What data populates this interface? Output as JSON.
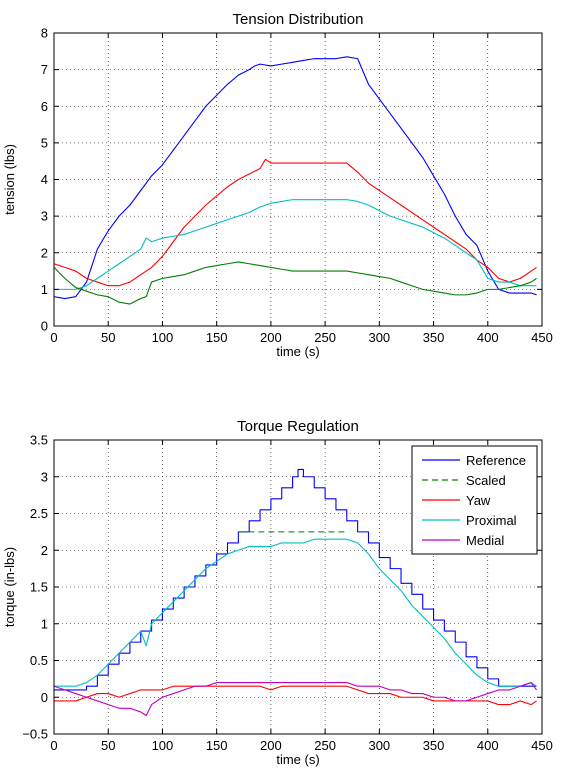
{
  "chart_data": [
    {
      "type": "line",
      "title": "Tension Distribution",
      "xlabel": "time (s)",
      "ylabel": "tension (lbs)",
      "xlim": [
        0,
        450
      ],
      "ylim": [
        0,
        8
      ],
      "xticks": [
        0,
        50,
        100,
        150,
        200,
        250,
        300,
        350,
        400,
        450
      ],
      "yticks": [
        0,
        1,
        2,
        3,
        4,
        5,
        6,
        7,
        8
      ],
      "grid": true,
      "series": [
        {
          "color": "#0000ff",
          "x": [
            0,
            10,
            20,
            30,
            40,
            50,
            60,
            70,
            80,
            90,
            100,
            110,
            120,
            130,
            140,
            150,
            160,
            170,
            180,
            185,
            190,
            200,
            210,
            220,
            230,
            240,
            250,
            260,
            270,
            280,
            290,
            300,
            310,
            320,
            330,
            340,
            350,
            360,
            370,
            380,
            390,
            400,
            410,
            420,
            430,
            440,
            445
          ],
          "y": [
            0.8,
            0.75,
            0.8,
            1.2,
            2.1,
            2.6,
            3.0,
            3.3,
            3.7,
            4.1,
            4.4,
            4.8,
            5.2,
            5.6,
            6.0,
            6.3,
            6.6,
            6.85,
            7.0,
            7.1,
            7.15,
            7.1,
            7.15,
            7.2,
            7.25,
            7.3,
            7.3,
            7.3,
            7.35,
            7.3,
            6.6,
            6.2,
            5.8,
            5.4,
            5.0,
            4.6,
            4.1,
            3.6,
            3.0,
            2.5,
            2.2,
            1.5,
            1.0,
            0.9,
            0.9,
            0.9,
            0.85
          ]
        },
        {
          "color": "#ff0000",
          "x": [
            0,
            10,
            20,
            30,
            40,
            50,
            60,
            70,
            80,
            90,
            100,
            110,
            120,
            130,
            140,
            150,
            160,
            170,
            180,
            190,
            195,
            200,
            210,
            220,
            230,
            240,
            250,
            260,
            270,
            280,
            290,
            300,
            310,
            320,
            330,
            340,
            350,
            360,
            370,
            380,
            390,
            400,
            410,
            420,
            430,
            440,
            445
          ],
          "y": [
            1.7,
            1.6,
            1.5,
            1.3,
            1.2,
            1.1,
            1.1,
            1.2,
            1.4,
            1.6,
            1.9,
            2.3,
            2.7,
            3.0,
            3.3,
            3.55,
            3.8,
            4.0,
            4.15,
            4.3,
            4.55,
            4.45,
            4.45,
            4.45,
            4.45,
            4.45,
            4.45,
            4.45,
            4.45,
            4.2,
            3.9,
            3.7,
            3.5,
            3.3,
            3.1,
            2.9,
            2.7,
            2.5,
            2.3,
            2.1,
            1.8,
            1.6,
            1.3,
            1.2,
            1.3,
            1.5,
            1.6
          ]
        },
        {
          "color": "#00bfbf",
          "x": [
            0,
            10,
            20,
            30,
            40,
            50,
            60,
            70,
            80,
            85,
            90,
            100,
            110,
            120,
            130,
            140,
            150,
            160,
            170,
            180,
            190,
            200,
            210,
            220,
            230,
            240,
            250,
            260,
            270,
            280,
            290,
            300,
            310,
            320,
            330,
            340,
            350,
            360,
            370,
            380,
            390,
            400,
            410,
            420,
            430,
            440,
            445
          ],
          "y": [
            1.0,
            1.0,
            1.0,
            1.1,
            1.3,
            1.5,
            1.7,
            1.9,
            2.1,
            2.4,
            2.3,
            2.4,
            2.45,
            2.5,
            2.6,
            2.7,
            2.8,
            2.9,
            3.0,
            3.1,
            3.25,
            3.35,
            3.4,
            3.45,
            3.45,
            3.45,
            3.45,
            3.45,
            3.45,
            3.4,
            3.3,
            3.15,
            3.0,
            2.9,
            2.8,
            2.7,
            2.55,
            2.4,
            2.2,
            2.0,
            1.8,
            1.3,
            1.2,
            1.2,
            1.1,
            1.1,
            1.1
          ]
        },
        {
          "color": "#007f00",
          "x": [
            0,
            10,
            20,
            30,
            40,
            50,
            60,
            70,
            80,
            85,
            90,
            100,
            110,
            120,
            130,
            140,
            150,
            160,
            170,
            180,
            190,
            200,
            210,
            220,
            230,
            240,
            250,
            260,
            270,
            280,
            290,
            300,
            310,
            320,
            330,
            340,
            350,
            360,
            370,
            380,
            390,
            400,
            410,
            420,
            430,
            440,
            445
          ],
          "y": [
            1.6,
            1.3,
            1.05,
            0.95,
            0.85,
            0.8,
            0.65,
            0.6,
            0.75,
            0.8,
            1.2,
            1.3,
            1.35,
            1.4,
            1.5,
            1.6,
            1.65,
            1.7,
            1.75,
            1.7,
            1.65,
            1.6,
            1.55,
            1.5,
            1.5,
            1.5,
            1.5,
            1.5,
            1.5,
            1.45,
            1.4,
            1.35,
            1.3,
            1.2,
            1.1,
            1.0,
            0.95,
            0.9,
            0.85,
            0.85,
            0.9,
            1.0,
            1.0,
            1.05,
            1.1,
            1.2,
            1.3
          ]
        }
      ]
    },
    {
      "type": "line",
      "title": "Torque Regulation",
      "xlabel": "time (s)",
      "ylabel": "torque (in-lbs)",
      "xlim": [
        0,
        450
      ],
      "ylim": [
        -0.5,
        3.5
      ],
      "xticks": [
        0,
        50,
        100,
        150,
        200,
        250,
        300,
        350,
        400,
        450
      ],
      "yticks": [
        -0.5,
        0,
        0.5,
        1,
        1.5,
        2,
        2.5,
        3,
        3.5
      ],
      "grid": true,
      "legend_location": "top-right",
      "series": [
        {
          "name": "Reference",
          "color": "#0000ff",
          "style": "step",
          "x": [
            0,
            20,
            30,
            40,
            50,
            60,
            70,
            80,
            90,
            100,
            110,
            120,
            130,
            140,
            150,
            160,
            170,
            180,
            190,
            200,
            210,
            220,
            225,
            230,
            240,
            250,
            260,
            270,
            280,
            290,
            300,
            310,
            320,
            330,
            340,
            350,
            360,
            370,
            380,
            390,
            400,
            410,
            420,
            430,
            440,
            445
          ],
          "y": [
            0.1,
            0.1,
            0.15,
            0.3,
            0.45,
            0.6,
            0.75,
            0.9,
            1.05,
            1.2,
            1.35,
            1.5,
            1.65,
            1.8,
            1.95,
            2.1,
            2.25,
            2.4,
            2.55,
            2.7,
            2.85,
            3.0,
            3.1,
            3.0,
            2.85,
            2.7,
            2.55,
            2.4,
            2.25,
            2.1,
            1.9,
            1.75,
            1.55,
            1.4,
            1.2,
            1.05,
            0.9,
            0.75,
            0.55,
            0.4,
            0.25,
            0.15,
            0.15,
            0.15,
            0.15,
            0.15
          ]
        },
        {
          "name": "Scaled",
          "color": "#007f00",
          "style": "dashed",
          "x": [
            170,
            270
          ],
          "y": [
            2.25,
            2.25
          ]
        },
        {
          "name": "Yaw",
          "color": "#ff0000",
          "x": [
            0,
            10,
            20,
            30,
            40,
            50,
            60,
            70,
            80,
            90,
            100,
            110,
            120,
            130,
            140,
            150,
            160,
            170,
            180,
            190,
            200,
            210,
            220,
            230,
            240,
            250,
            260,
            270,
            280,
            290,
            300,
            310,
            320,
            330,
            340,
            350,
            360,
            370,
            380,
            390,
            400,
            410,
            420,
            430,
            440,
            445
          ],
          "y": [
            -0.05,
            -0.05,
            -0.05,
            0.0,
            0.05,
            0.05,
            0.0,
            0.05,
            0.1,
            0.1,
            0.1,
            0.15,
            0.15,
            0.15,
            0.15,
            0.15,
            0.15,
            0.15,
            0.15,
            0.15,
            0.1,
            0.15,
            0.15,
            0.15,
            0.15,
            0.15,
            0.15,
            0.15,
            0.1,
            0.05,
            0.05,
            0.05,
            0.0,
            0.0,
            0.0,
            -0.05,
            -0.05,
            -0.05,
            -0.05,
            -0.05,
            -0.05,
            -0.1,
            -0.1,
            -0.05,
            -0.1,
            -0.05
          ]
        },
        {
          "name": "Proximal",
          "color": "#00bfbf",
          "x": [
            0,
            10,
            20,
            30,
            40,
            50,
            60,
            70,
            80,
            85,
            90,
            100,
            110,
            120,
            130,
            140,
            150,
            160,
            170,
            180,
            190,
            200,
            210,
            220,
            230,
            240,
            250,
            260,
            270,
            280,
            290,
            300,
            310,
            320,
            330,
            340,
            350,
            360,
            370,
            380,
            390,
            400,
            410,
            420,
            430,
            440,
            445
          ],
          "y": [
            0.15,
            0.15,
            0.15,
            0.2,
            0.3,
            0.45,
            0.6,
            0.75,
            0.9,
            0.7,
            1.0,
            1.15,
            1.3,
            1.45,
            1.6,
            1.75,
            1.85,
            1.95,
            2.0,
            2.05,
            2.05,
            2.05,
            2.1,
            2.1,
            2.1,
            2.15,
            2.15,
            2.15,
            2.15,
            2.1,
            1.95,
            1.75,
            1.6,
            1.45,
            1.25,
            1.1,
            0.95,
            0.8,
            0.6,
            0.45,
            0.3,
            0.2,
            0.15,
            0.15,
            0.15,
            0.2,
            0.15
          ]
        },
        {
          "name": "Medial",
          "color": "#bf00bf",
          "x": [
            0,
            10,
            20,
            30,
            40,
            50,
            60,
            70,
            80,
            85,
            90,
            100,
            110,
            120,
            130,
            140,
            150,
            160,
            170,
            180,
            190,
            200,
            210,
            220,
            230,
            240,
            250,
            260,
            270,
            280,
            290,
            300,
            310,
            320,
            330,
            340,
            350,
            360,
            370,
            380,
            390,
            400,
            410,
            420,
            430,
            440,
            445
          ],
          "y": [
            0.15,
            0.1,
            0.05,
            0.0,
            -0.05,
            -0.1,
            -0.15,
            -0.15,
            -0.2,
            -0.25,
            -0.1,
            0.0,
            0.05,
            0.1,
            0.15,
            0.15,
            0.2,
            0.2,
            0.2,
            0.2,
            0.2,
            0.2,
            0.2,
            0.2,
            0.2,
            0.2,
            0.2,
            0.2,
            0.2,
            0.15,
            0.15,
            0.15,
            0.1,
            0.1,
            0.05,
            0.05,
            0.0,
            0.0,
            -0.05,
            -0.05,
            0.0,
            0.05,
            0.1,
            0.1,
            0.15,
            0.2,
            0.1
          ]
        }
      ]
    }
  ]
}
